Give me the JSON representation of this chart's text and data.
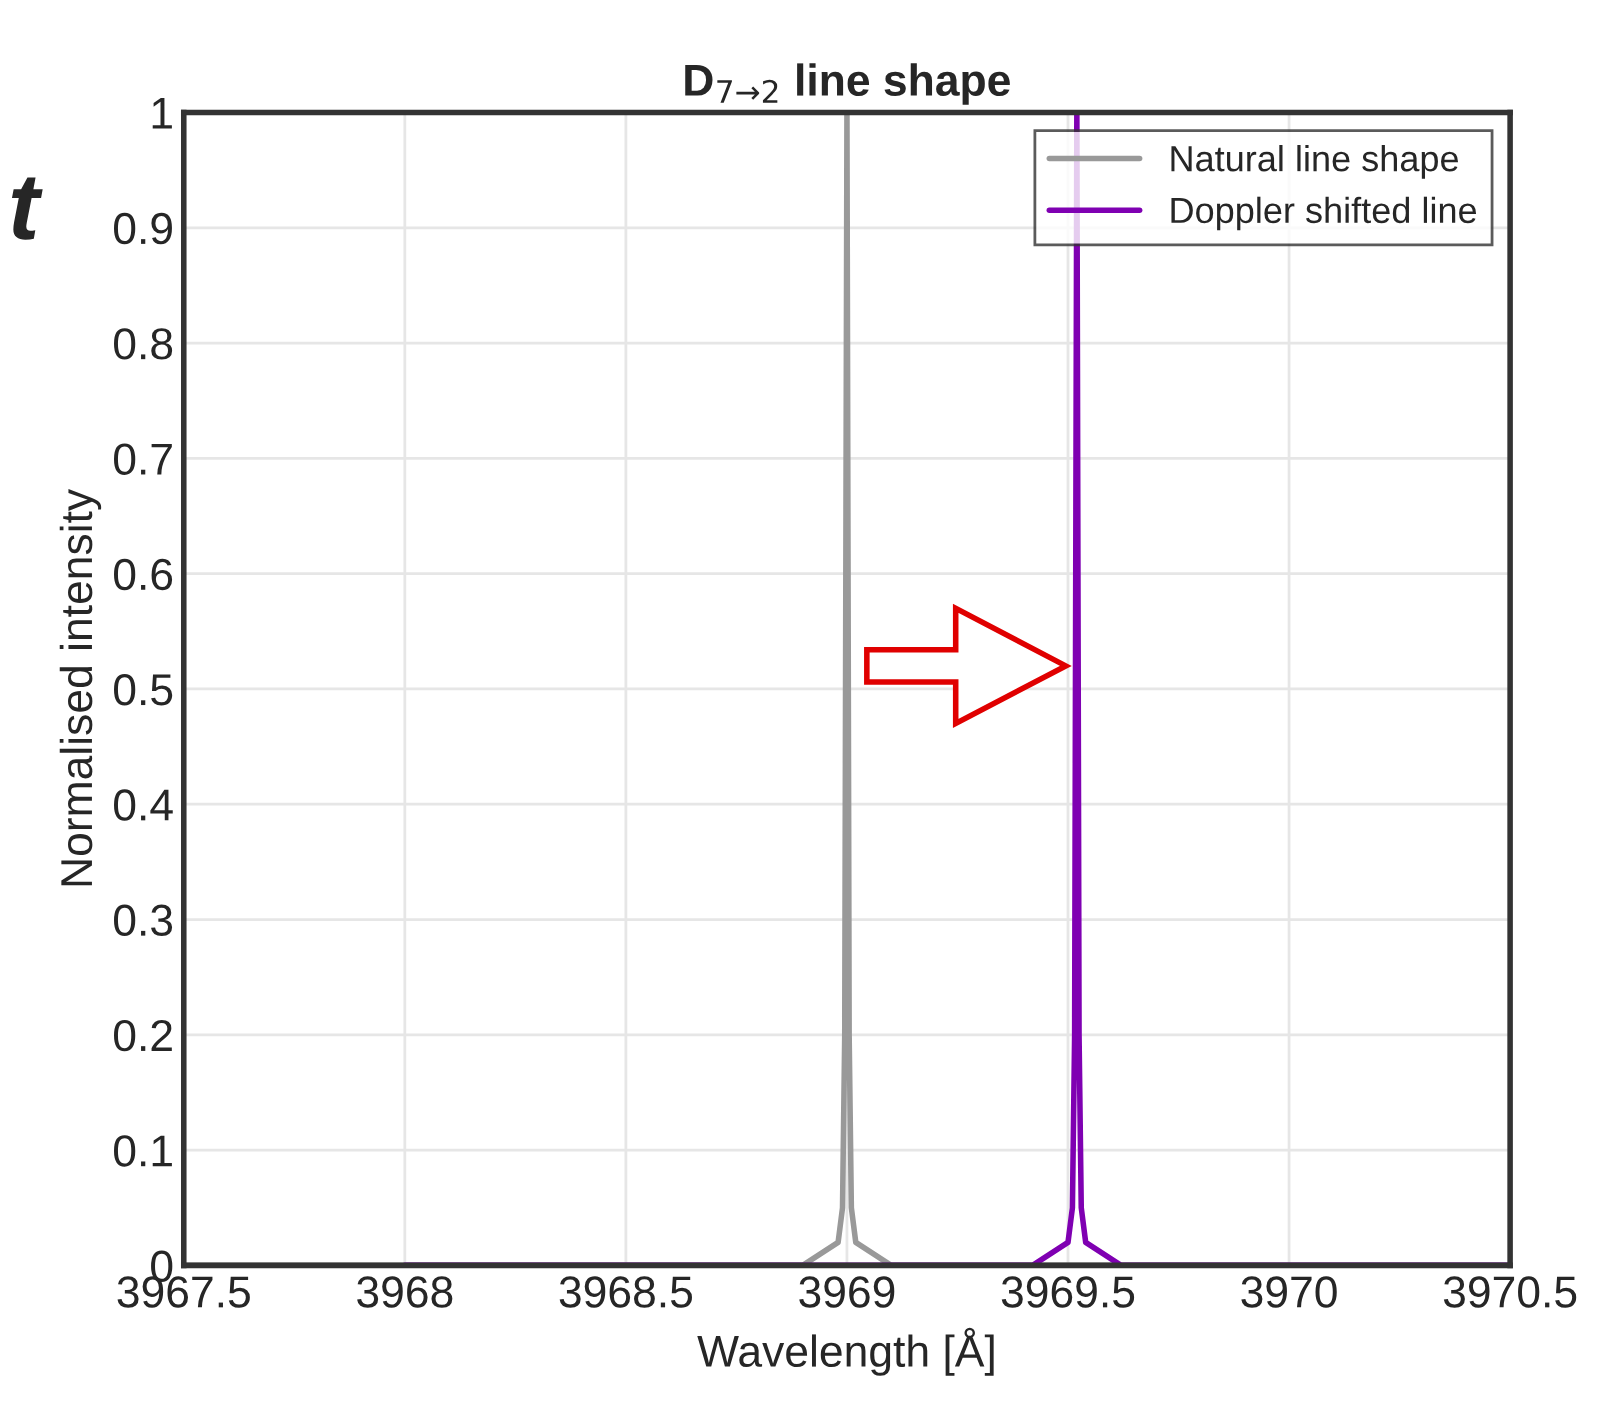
{
  "chart_data": {
    "type": "line",
    "title": "D$_{7→2}$ line shape",
    "xlabel": "Wavelength [Å]",
    "ylabel": "Normalised intensity",
    "xlim": [
      3967.5,
      3970.5
    ],
    "xticks": [
      {
        "value": 3967.5,
        "label": "3967.5"
      },
      {
        "value": 3968,
        "label": "3968"
      },
      {
        "value": 3968.5,
        "label": "3968.5"
      },
      {
        "value": 3969,
        "label": "3969"
      },
      {
        "value": 3969.5,
        "label": "3969.5"
      },
      {
        "value": 3970,
        "label": "3970"
      },
      {
        "value": 3970.5,
        "label": "3970.5"
      }
    ],
    "ylim": [
      0,
      1
    ],
    "yticks": [
      0,
      0.1,
      0.2,
      0.3,
      0.4,
      0.5,
      0.6,
      0.7,
      0.8,
      0.9,
      1
    ],
    "grid": true,
    "legend": "top right",
    "marker": "none",
    "line_style": "solid",
    "annotations": [
      "t"
    ],
    "series": [
      {
        "name": "Natural line shape",
        "color": "#999999",
        "x": [
          3967.5,
          3968.9,
          3968.98,
          3968.99,
          3968.995,
          3969.0,
          3969.005,
          3969.01,
          3969.02,
          3969.1,
          3970.5
        ],
        "values": [
          0,
          0,
          0.02,
          0.05,
          0.2,
          1,
          0.2,
          0.05,
          0.02,
          0,
          0
        ]
      },
      {
        "name": "Doppler shifted line",
        "color": "#7f00b2",
        "x": [
          3968,
          3969.42,
          3969.5,
          3969.51,
          3969.515,
          3969.52,
          3969.525,
          3969.53,
          3969.54,
          3969.62,
          3970.5
        ],
        "values": [
          0,
          0,
          0.02,
          0.05,
          0.2,
          1,
          0.2,
          0.05,
          0.02,
          0,
          0
        ]
      }
    ]
  }
}
